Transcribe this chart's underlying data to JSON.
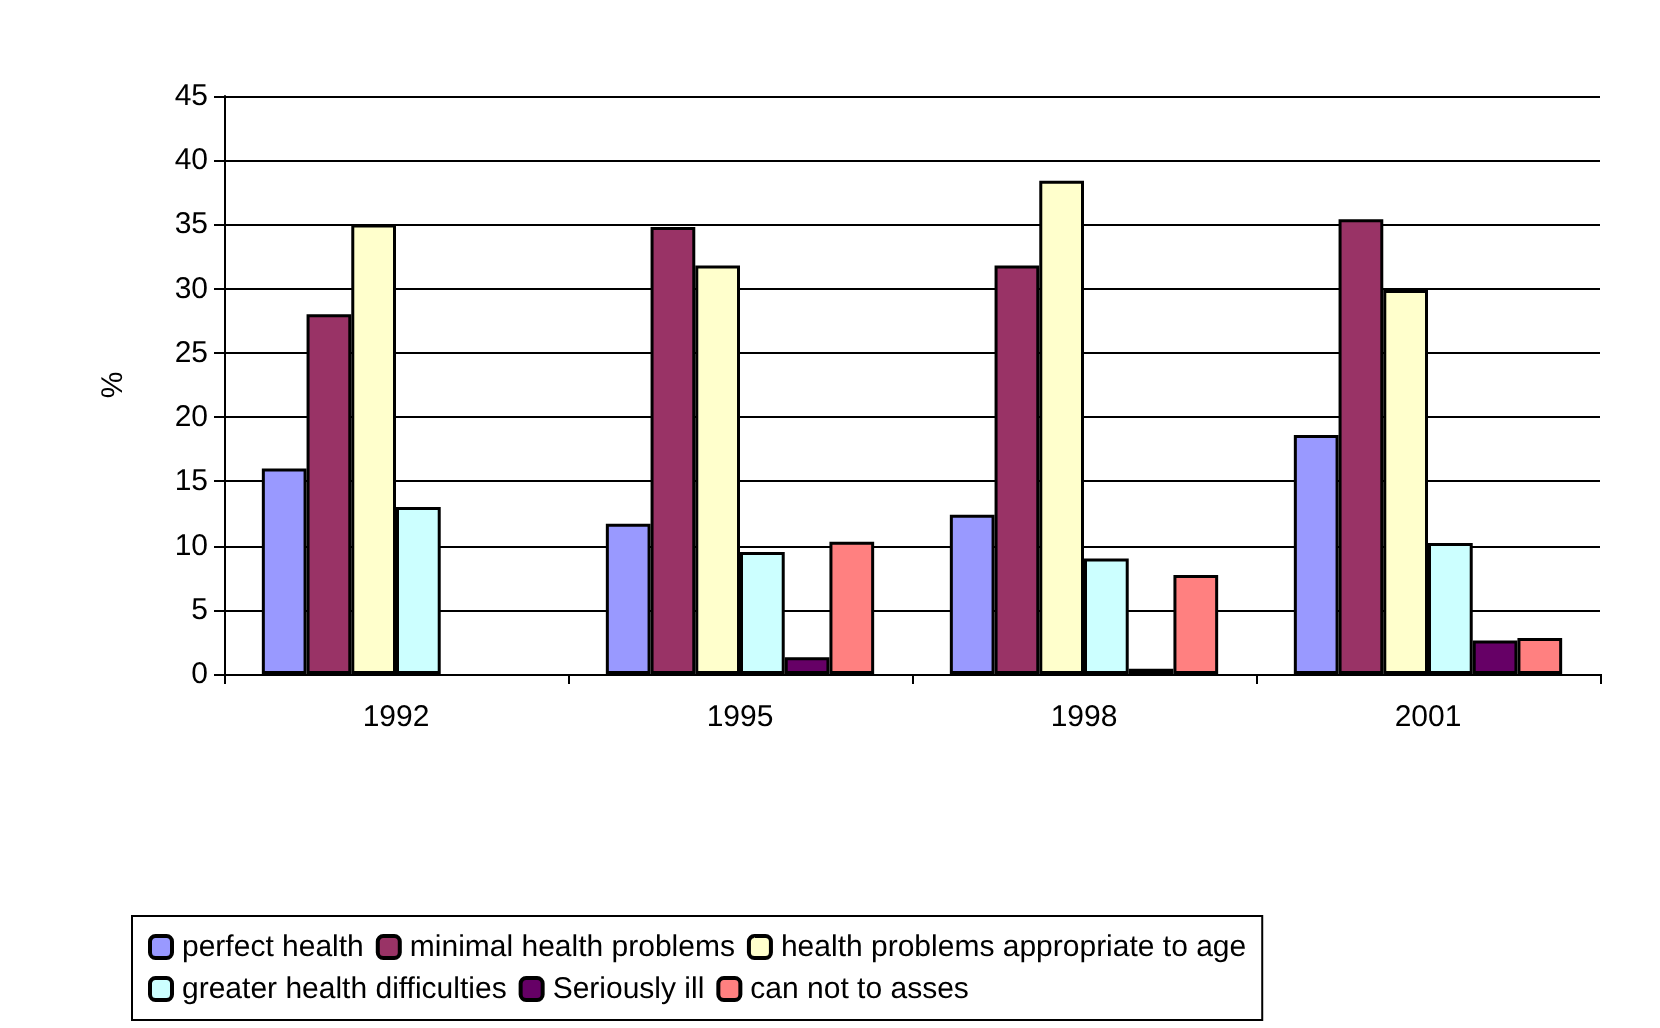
{
  "chart_data": {
    "type": "bar",
    "ylabel": "%",
    "categories": [
      "1992",
      "1995",
      "1998",
      "2001"
    ],
    "series": [
      {
        "name": "perfect health",
        "color": "#9999ff",
        "values": [
          16,
          11.7,
          12.4,
          18.6
        ]
      },
      {
        "name": "minimal health problems",
        "color": "#993366",
        "values": [
          28,
          34.8,
          31.8,
          35.4
        ]
      },
      {
        "name": "health problems appropriate to age",
        "color": "#ffffcc",
        "values": [
          35,
          31.8,
          38.4,
          29.9
        ]
      },
      {
        "name": "greater health difficulties",
        "color": "#ccffff",
        "values": [
          13,
          9.5,
          9,
          10.2
        ]
      },
      {
        "name": "Seriously ill",
        "color": "#660066",
        "values": [
          null,
          1.3,
          0.4,
          2.6
        ]
      },
      {
        "name": "can not to asses",
        "color": "#ff8080",
        "values": [
          null,
          10.3,
          7.7,
          2.8
        ]
      }
    ],
    "ylim": [
      0,
      45
    ],
    "yticks": [
      0,
      5,
      10,
      15,
      20,
      25,
      30,
      35,
      40,
      45
    ],
    "grid": "y",
    "legend": "bottom"
  }
}
